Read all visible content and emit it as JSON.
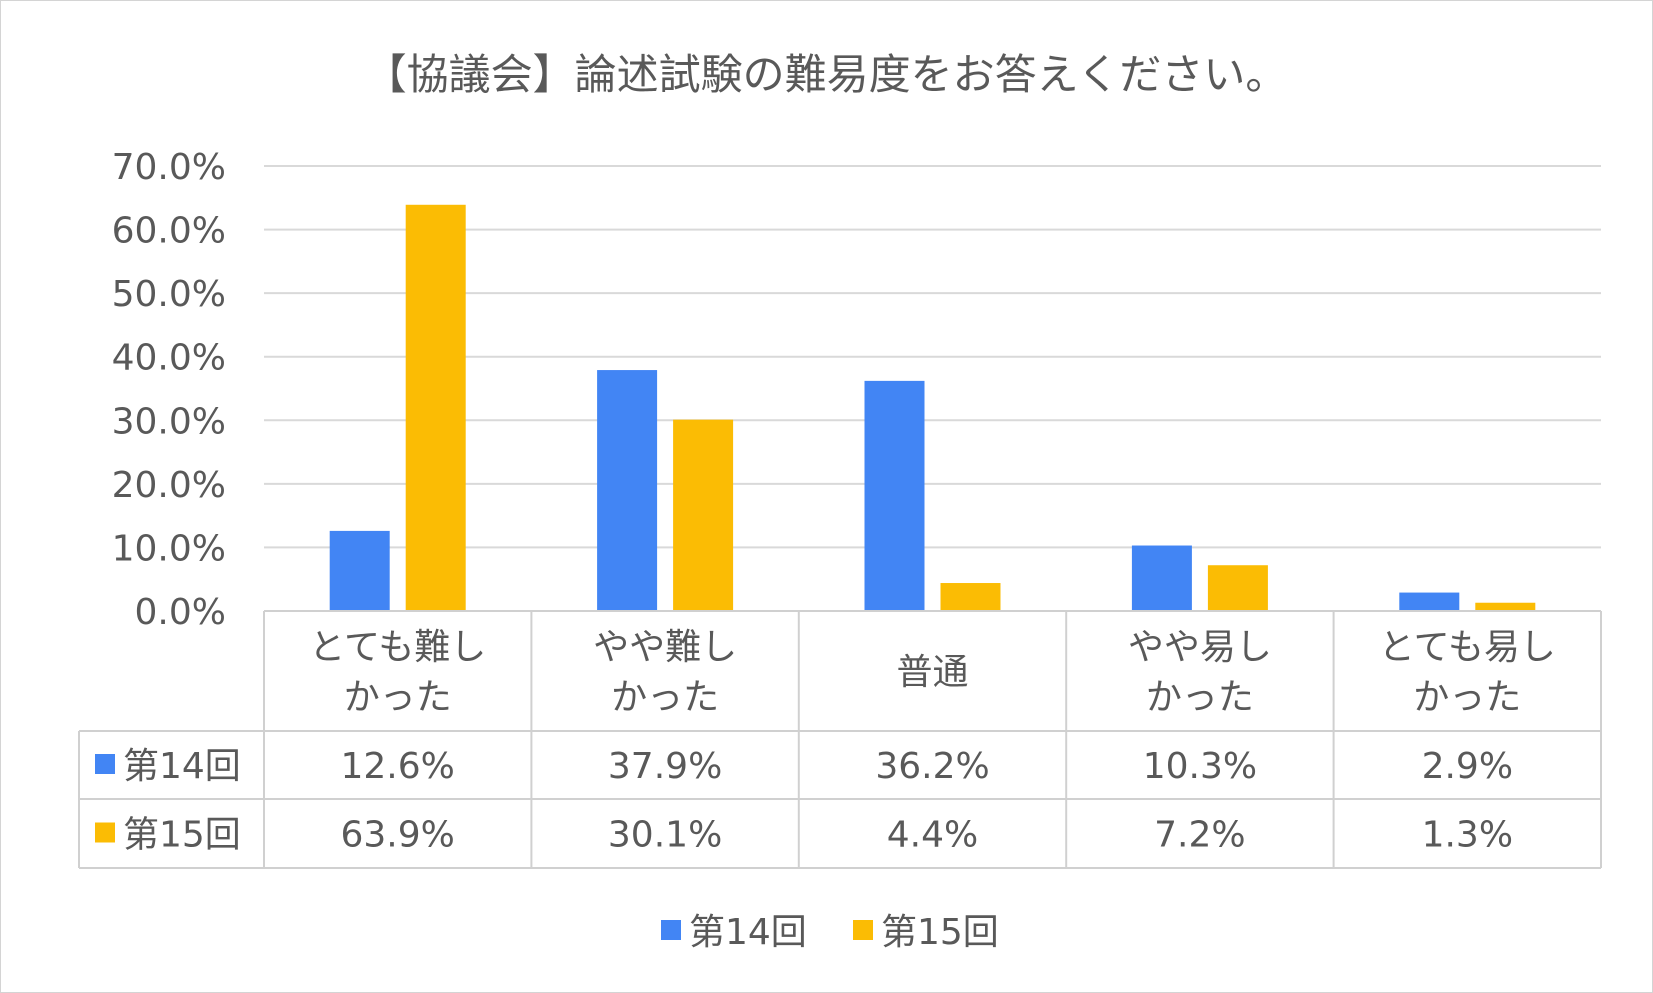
{
  "chart_data": {
    "type": "bar",
    "title": "【協議会】論述試験の難易度をお答えください。",
    "categories": [
      [
        "とても難し",
        "かった"
      ],
      [
        "やや難し",
        "かった"
      ],
      [
        "普通"
      ],
      [
        "やや易し",
        "かった"
      ],
      [
        "とても易し",
        "かった"
      ]
    ],
    "series": [
      {
        "name": "第14回",
        "color": "#4285f4",
        "values": [
          12.6,
          37.9,
          36.2,
          10.3,
          2.9
        ],
        "labels": [
          "12.6%",
          "37.9%",
          "36.2%",
          "10.3%",
          "2.9%"
        ]
      },
      {
        "name": "第15回",
        "color": "#fbbc04",
        "values": [
          63.9,
          30.1,
          4.4,
          7.2,
          1.3
        ],
        "labels": [
          "63.9%",
          "30.1%",
          "4.4%",
          "7.2%",
          "1.3%"
        ]
      }
    ],
    "yticks": [
      "0.0%",
      "10.0%",
      "20.0%",
      "30.0%",
      "40.0%",
      "50.0%",
      "60.0%",
      "70.0%"
    ],
    "ylim": [
      0,
      70
    ],
    "grid": true,
    "legend_position": "bottom",
    "data_table": true
  }
}
